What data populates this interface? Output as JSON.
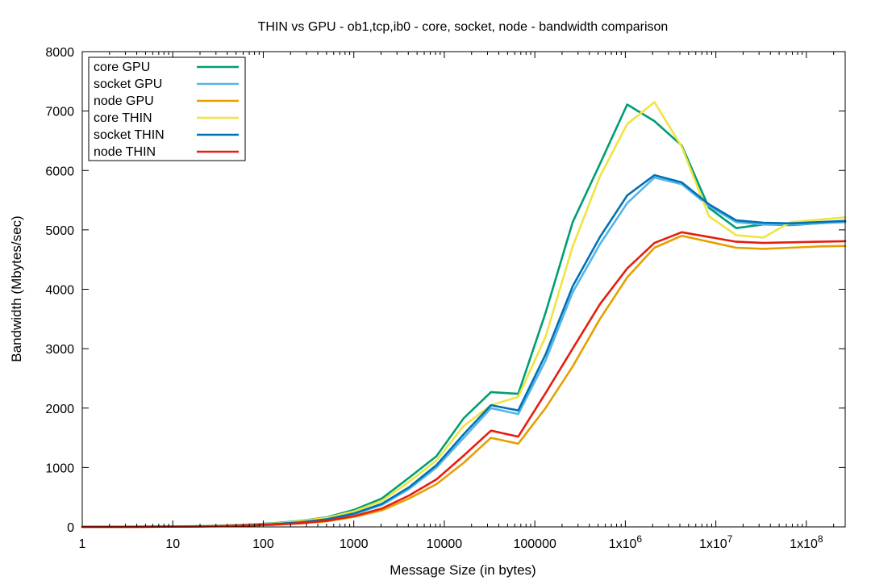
{
  "chart_data": {
    "type": "line",
    "title": "THIN vs GPU - ob1,tcp,ib0 - core, socket, node - bandwidth comparison",
    "xlabel": "Message Size (in bytes)",
    "ylabel": "Bandwidth (Mbytes/sec)",
    "x_scale": "log2",
    "xlim": [
      1,
      268435456
    ],
    "ylim": [
      0,
      8000
    ],
    "grid": false,
    "legend_position": "top-left",
    "x_ticks": [
      {
        "value": 1,
        "label": "1"
      },
      {
        "value": 10,
        "label": "10"
      },
      {
        "value": 100,
        "label": "100"
      },
      {
        "value": 1000,
        "label": "1000"
      },
      {
        "value": 10000,
        "label": "10000"
      },
      {
        "value": 100000,
        "label": "100000"
      },
      {
        "value": 1000000,
        "label": "1x10^6"
      },
      {
        "value": 10000000,
        "label": "1x10^7"
      },
      {
        "value": 100000000,
        "label": "1x10^8"
      }
    ],
    "y_ticks": [
      0,
      1000,
      2000,
      3000,
      4000,
      5000,
      6000,
      7000,
      8000
    ],
    "x": [
      1,
      2,
      4,
      8,
      16,
      32,
      64,
      128,
      256,
      512,
      1024,
      2048,
      4096,
      8192,
      16384,
      32768,
      65536,
      131072,
      262144,
      524288,
      1048576,
      2097152,
      4194304,
      8388608,
      16777216,
      33554432,
      67108864,
      134217728,
      268435456
    ],
    "series": [
      {
        "name": "core GPU",
        "color": "#009e73",
        "values": [
          1,
          2,
          4,
          7,
          11,
          19,
          37,
          60,
          100,
          165,
          290,
          480,
          830,
          1190,
          1830,
          2270,
          2240,
          3600,
          5130,
          6110,
          7110,
          6830,
          6420,
          5370,
          5030,
          5090,
          5080,
          5110,
          5140
        ]
      },
      {
        "name": "socket GPU",
        "color": "#56b4e9",
        "values": [
          1,
          1,
          3,
          5,
          8,
          14,
          27,
          45,
          75,
          125,
          220,
          370,
          640,
          1000,
          1500,
          2000,
          1900,
          2800,
          3950,
          4760,
          5450,
          5880,
          5770,
          5400,
          5130,
          5090,
          5090,
          5110,
          5130
        ]
      },
      {
        "name": "node GPU",
        "color": "#e69f00",
        "values": [
          1,
          1,
          2,
          4,
          6,
          11,
          21,
          35,
          58,
          96,
          170,
          280,
          480,
          720,
          1080,
          1500,
          1400,
          2000,
          2700,
          3500,
          4200,
          4700,
          4900,
          4800,
          4700,
          4680,
          4700,
          4720,
          4730
        ]
      },
      {
        "name": "core THIN",
        "color": "#f0e442",
        "values": [
          1,
          2,
          4,
          6,
          10,
          17,
          33,
          55,
          95,
          155,
          265,
          440,
          760,
          1120,
          1700,
          2050,
          2190,
          3200,
          4720,
          5900,
          6780,
          7150,
          6400,
          5230,
          4910,
          4870,
          5130,
          5170,
          5210
        ]
      },
      {
        "name": "socket THIN",
        "color": "#0072b2",
        "values": [
          1,
          1,
          3,
          5,
          8,
          14,
          28,
          46,
          78,
          130,
          230,
          390,
          670,
          1040,
          1560,
          2050,
          1960,
          2900,
          4050,
          4880,
          5580,
          5920,
          5800,
          5430,
          5160,
          5120,
          5110,
          5130,
          5150
        ]
      },
      {
        "name": "node THIN",
        "color": "#e51e10",
        "values": [
          1,
          1,
          2,
          4,
          7,
          12,
          23,
          38,
          63,
          105,
          185,
          310,
          530,
          800,
          1200,
          1620,
          1520,
          2250,
          3000,
          3750,
          4350,
          4780,
          4960,
          4880,
          4800,
          4780,
          4790,
          4800,
          4810
        ]
      }
    ]
  }
}
